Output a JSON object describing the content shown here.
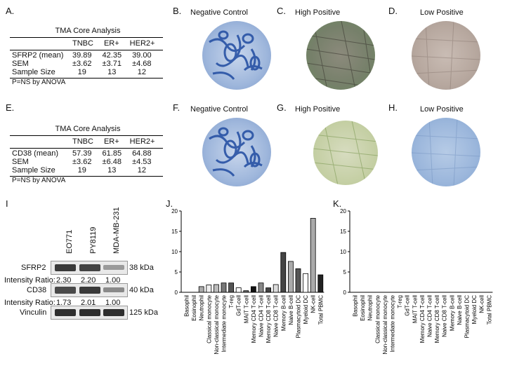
{
  "panels": {
    "A": "A.",
    "B": "B.",
    "C": "C.",
    "D": "D.",
    "E": "E.",
    "F": "F.",
    "G": "G.",
    "H": "H.",
    "I": "I",
    "J": "J.",
    "K": "K."
  },
  "images_row1": {
    "B_title": "Negative Control",
    "C_title": "High Positive",
    "D_title": "Low Positive"
  },
  "images_row2": {
    "F_title": "Negative Control",
    "G_title": "High Positive",
    "H_title": "Low Positive"
  },
  "table_A": {
    "title": "TMA Core Analysis",
    "headers": [
      "",
      "TNBC",
      "ER+",
      "HER2+"
    ],
    "rows": [
      [
        "SFRP2 (mean)",
        "39.89",
        "42.35",
        "39.00"
      ],
      [
        "SEM",
        "±3.62",
        "±3.71",
        "±4.68"
      ],
      [
        "Sample Size",
        "19",
        "13",
        "12"
      ]
    ],
    "footnote": "P=NS by ANOVA"
  },
  "table_E": {
    "title": "TMA Core Analysis",
    "headers": [
      "",
      "TNBC",
      "ER+",
      "HER2+"
    ],
    "rows": [
      [
        "CD38 (mean)",
        "57.39",
        "61.85",
        "64.88"
      ],
      [
        "SEM",
        "±3.62",
        "±6.48",
        "±4.53"
      ],
      [
        "Sample Size",
        "19",
        "13",
        "12"
      ]
    ],
    "footnote": "P=NS by ANOVA"
  },
  "blot": {
    "lanes": [
      "EO771",
      "PY8119",
      "MDA-MB-231"
    ],
    "rows": [
      {
        "label": "SFRP2",
        "size": "38 kDa"
      },
      {
        "label": "Intensity Ratio:",
        "values": [
          "2.30",
          "2.20",
          "1.00"
        ]
      },
      {
        "label": "CD38",
        "size": "40 kDa"
      },
      {
        "label": "Intensity Ratio:",
        "values": [
          "1.73",
          "2.01",
          "1.00"
        ]
      },
      {
        "label": "Vinculin",
        "size": "125 kDa"
      }
    ]
  },
  "chart_data": [
    {
      "type": "bar",
      "panel": "J.",
      "categories": [
        "Basophil",
        "Eosinophil",
        "Neutrophil",
        "Classical monocyte",
        "Non-classical monocyte",
        "Intermediate monocyte",
        "T-reg",
        "GdT-cell",
        "MAIT T-cell",
        "Memory CD4 T-cell",
        "Naive CD4 T-cell",
        "Memory CD8 T-cell",
        "Naive CD8 T-cell",
        "Memory B-cell",
        "Naive B-cell",
        "Plasmacytoid DC",
        "Myeloid DC",
        "NK-cell",
        "Total PBMC"
      ],
      "values": [
        0,
        0,
        1.4,
        1.8,
        1.9,
        2.3,
        2.3,
        1.1,
        0.4,
        1.4,
        2.3,
        1.1,
        1.9,
        9.8,
        7.6,
        5.8,
        4.6,
        18.2,
        4.3
      ],
      "ylim": [
        0,
        20
      ],
      "yticks": [
        0,
        5,
        10,
        15,
        20
      ],
      "colors": [
        "#ffffff",
        "#ffffff",
        "#aaaaaa",
        "#eeeeee",
        "#bbbbbb",
        "#777777",
        "#555555",
        "#ffffff",
        "#666666",
        "#111111",
        "#888888",
        "#444444",
        "#dddddd",
        "#444444",
        "#aaaaaa",
        "#555555",
        "#ffffff",
        "#aaaaaa",
        "#222222"
      ]
    },
    {
      "type": "bar",
      "panel": "K.",
      "categories": [
        "Basophil",
        "Eosinophil",
        "Neutrophil",
        "Classical monocyte",
        "Non-classical monocyte",
        "Intermediate monocyte",
        "T-reg",
        "GdT-cell",
        "MAIT T-cell",
        "Memory CD4 T-cell",
        "Naive CD4 T-cell",
        "Memory CD8 T-cell",
        "Naive CD8 T-cell",
        "Memory B-cell",
        "Naive B-cell",
        "Plasmacytoid DC",
        "Myeloid DC",
        "NK-cell",
        "Total PBMC"
      ],
      "values": [
        0,
        0,
        0,
        0,
        0,
        0,
        0,
        0,
        0,
        0,
        0,
        0,
        0,
        0,
        0,
        0,
        0,
        0,
        0
      ],
      "ylim": [
        0,
        20
      ],
      "yticks": [
        0,
        5,
        10,
        15,
        20
      ]
    }
  ]
}
